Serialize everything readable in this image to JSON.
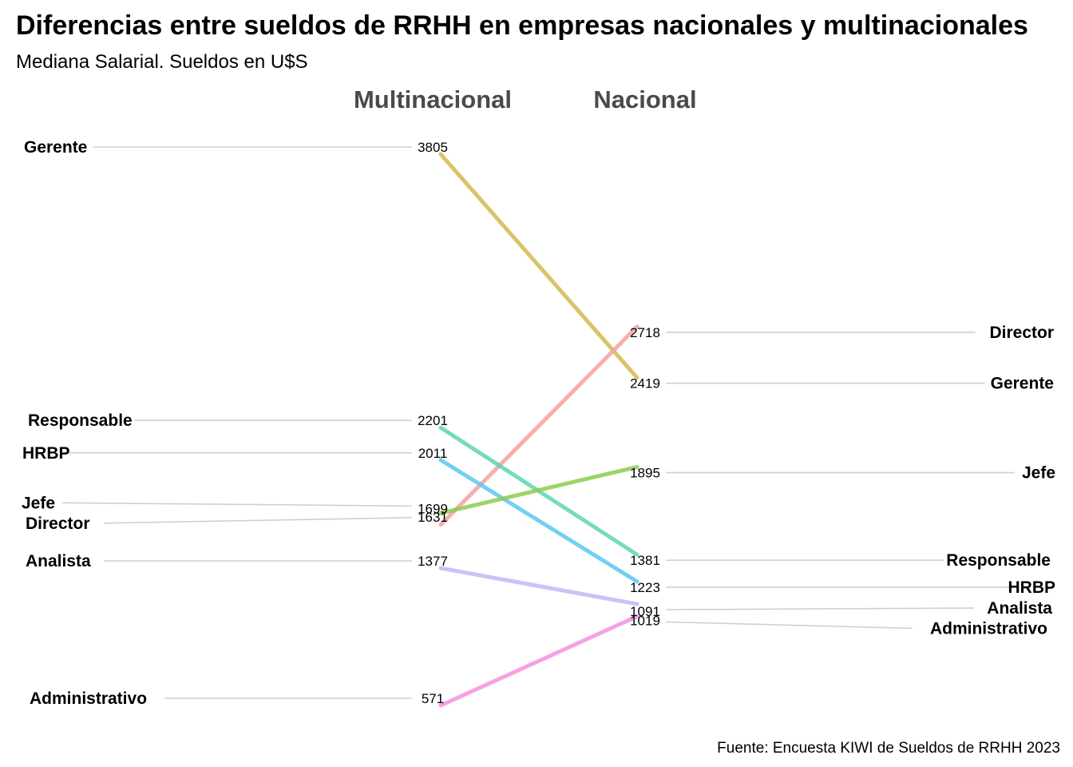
{
  "chart_data": {
    "type": "slope",
    "title": "Diferencias entre sueldos de RRHH en empresas nacionales y multinacionales",
    "subtitle": "Mediana Salarial. Sueldos en U$S",
    "caption": "Fuente: Encuesta KIWI de Sueldos de RRHH 2023",
    "columns": [
      "Multinacional",
      "Nacional"
    ],
    "series": [
      {
        "name": "Gerente",
        "values": [
          3805,
          2419
        ],
        "color": "#d4b94e"
      },
      {
        "name": "Director",
        "values": [
          1631,
          2718
        ],
        "color": "#f4a1a1"
      },
      {
        "name": "Responsable",
        "values": [
          2201,
          1381
        ],
        "color": "#5fd3b0"
      },
      {
        "name": "HRBP",
        "values": [
          2011,
          1223
        ],
        "color": "#5bc8ee"
      },
      {
        "name": "Jefe",
        "values": [
          1699,
          1895
        ],
        "color": "#8ccd4f"
      },
      {
        "name": "Analista",
        "values": [
          1377,
          1091
        ],
        "color": "#c7b5f5"
      },
      {
        "name": "Administrativo",
        "values": [
          571,
          1019
        ],
        "color": "#f590de"
      }
    ]
  }
}
